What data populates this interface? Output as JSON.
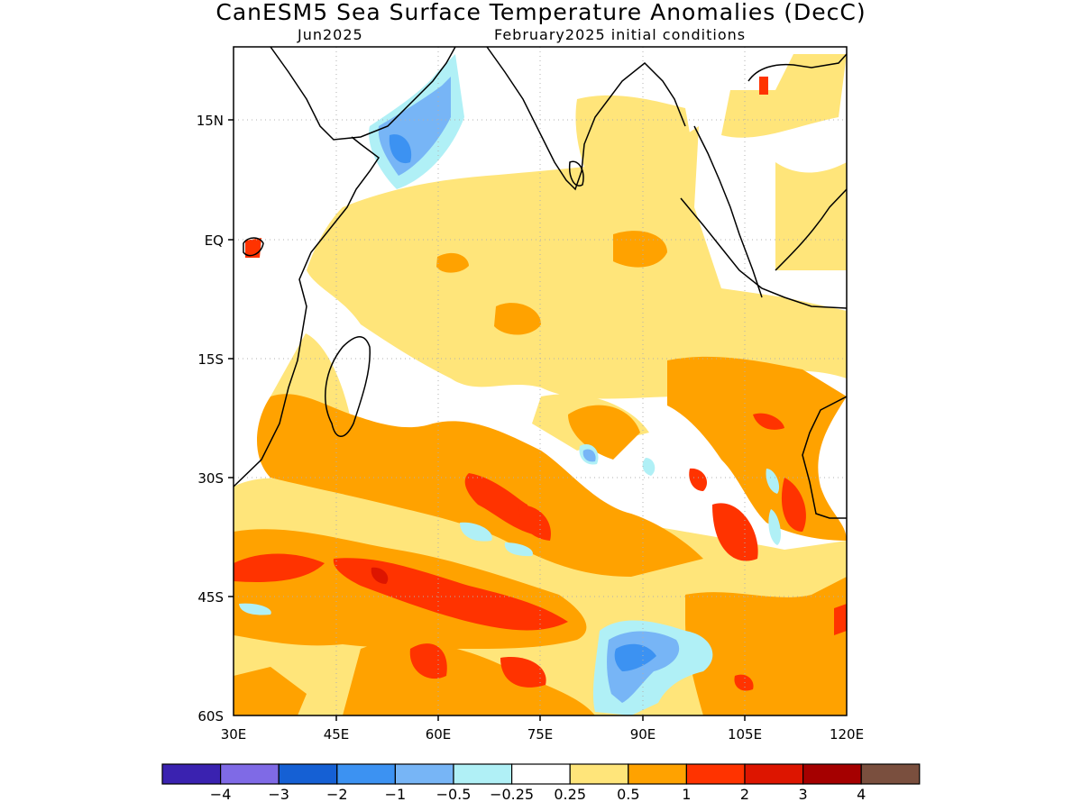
{
  "title": "CanESM5 Sea Surface Temperature Anomalies (DecC)",
  "subtitle_left": "Jun2025",
  "subtitle_right": "February2025 initial conditions",
  "map": {
    "lon_range": [
      30,
      120
    ],
    "lat_range": [
      -60,
      22
    ],
    "lon_ticks": [
      "30E",
      "45E",
      "60E",
      "75E",
      "90E",
      "105E",
      "120E"
    ],
    "lat_ticks": [
      "15N",
      "EQ",
      "15S",
      "30S",
      "45S",
      "60S"
    ]
  },
  "colorbar": {
    "colors": [
      "#3a22b0",
      "#7f6ae6",
      "#1560d4",
      "#3c92f2",
      "#77b5f6",
      "#b0f0f6",
      "#ffffff",
      "#ffe57a",
      "#ffa200",
      "#ff3300",
      "#dd1500",
      "#a50000",
      "#7a4f3e"
    ],
    "labels": [
      "−4",
      "−3",
      "−2",
      "−1",
      "−0.5",
      "−0.25",
      "0.25",
      "0.5",
      "1",
      "2",
      "3",
      "4"
    ]
  }
}
